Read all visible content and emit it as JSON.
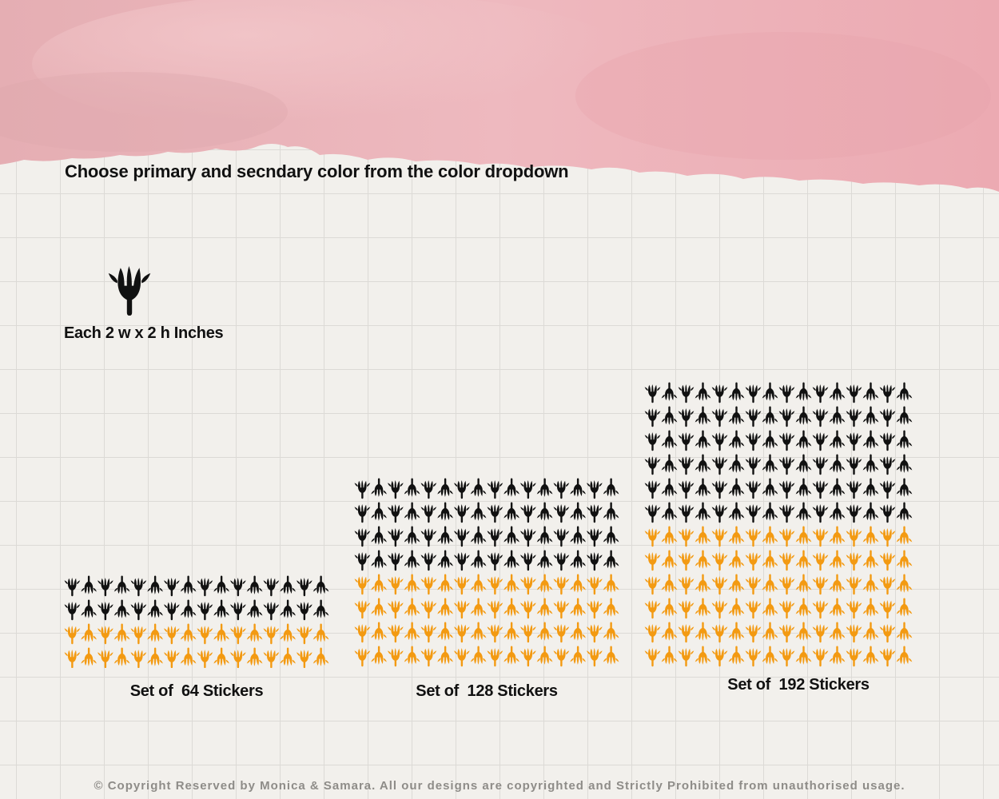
{
  "instruction": "Choose primary and secndary color from the color dropdown",
  "sticker": {
    "size_label": "Each 2 w x 2 h Inches"
  },
  "sets": [
    {
      "label": "Set of  64 Stickers",
      "primary_rows": 2,
      "secondary_rows": 2,
      "per_row": 16
    },
    {
      "label": "Set of  128 Stickers",
      "primary_rows": 4,
      "secondary_rows": 4,
      "per_row": 16
    },
    {
      "label": "Set of  192 Stickers",
      "primary_rows": 6,
      "secondary_rows": 6,
      "per_row": 16
    }
  ],
  "colors": {
    "primary": "#111111",
    "secondary": "#f39a12",
    "watercolor": "#eab1b8"
  },
  "icons": {
    "sticker": "flower-bud-icon"
  },
  "copyright": "© Copyright Reserved by Monica & Samara. All our designs are copyrighted and Strictly Prohibited from unauthorised usage."
}
